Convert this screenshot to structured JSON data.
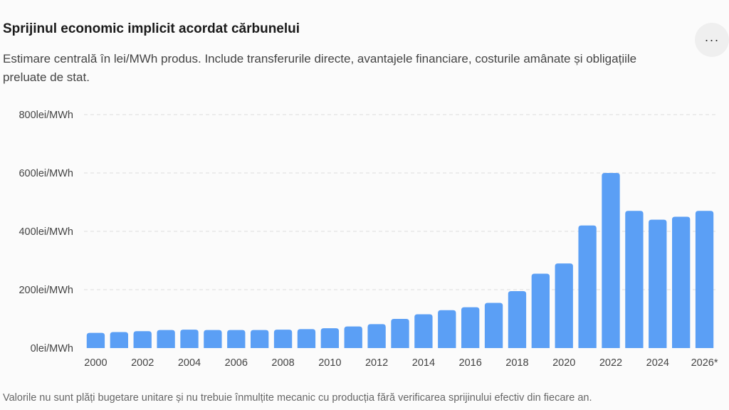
{
  "header": {
    "title": "Sprijinul economic implicit acordat cărbunelui",
    "subtitle": "Estimare centrală în lei/MWh produs. Include transferurile directe, avantajele financiare, costurile amânate și obligațiile preluate de stat.",
    "more_label": "···"
  },
  "footnote": "Valorile nu sunt plăți bugetare unitare și nu trebuie înmulțite mecanic cu producția fără verificarea sprijinului efectiv din fiecare an.",
  "colors": {
    "bar": "#5b9ff5",
    "grid": "#dddddd",
    "text": "#444444"
  },
  "chart_data": {
    "type": "bar",
    "categories": [
      "2000",
      "2001",
      "2002",
      "2003",
      "2004",
      "2005",
      "2006",
      "2007",
      "2008",
      "2009",
      "2010",
      "2011",
      "2012",
      "2013",
      "2014",
      "2015",
      "2016",
      "2017",
      "2018",
      "2019",
      "2020",
      "2021",
      "2022",
      "2023",
      "2024",
      "2025",
      "2026*"
    ],
    "values": [
      52,
      55,
      58,
      62,
      63,
      62,
      62,
      62,
      63,
      65,
      68,
      74,
      82,
      100,
      116,
      130,
      140,
      155,
      195,
      255,
      290,
      420,
      600,
      470,
      440,
      450,
      470
    ],
    "x_tick_labels": [
      "2000",
      "2002",
      "2004",
      "2006",
      "2008",
      "2010",
      "2012",
      "2014",
      "2016",
      "2018",
      "2020",
      "2022",
      "2024",
      "2026*"
    ],
    "y_ticks": [
      {
        "value": 0,
        "label": "0lei/MWh"
      },
      {
        "value": 200,
        "label": "200lei/MWh"
      },
      {
        "value": 400,
        "label": "400lei/MWh"
      },
      {
        "value": 600,
        "label": "600lei/MWh"
      },
      {
        "value": 800,
        "label": "800lei/MWh"
      }
    ],
    "ylim": [
      0,
      800
    ],
    "grid": true,
    "legend": "none"
  }
}
